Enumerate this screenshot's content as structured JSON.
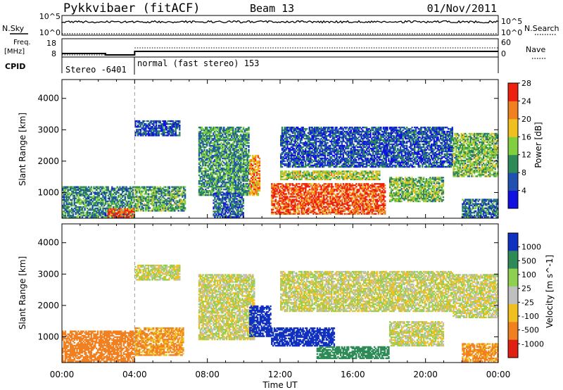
{
  "header": {
    "station": "Pykkvibaer (fitACF)",
    "beam": "Beam 13",
    "date": "01/Nov/2011"
  },
  "status_panels": {
    "nsky_label": "N.Sky",
    "nsearch_label": "N.Search",
    "freq_label_line1": "Freq.",
    "freq_label_line2": "[MHz]",
    "nave_label": "Nave",
    "cpid_label": "CPID",
    "noise_ticks_left": [
      "10^5",
      "10^0"
    ],
    "noise_ticks_right": [
      "10^5",
      "10^0"
    ],
    "freq_ticks": [
      "18",
      "8"
    ],
    "nave_ticks": [
      "60",
      "0"
    ],
    "cpid_modes": [
      {
        "label": "Stereo -6401",
        "start_hour": 0,
        "end_hour": 4
      },
      {
        "label": "normal (fast stereo) 153",
        "start_hour": 4,
        "end_hour": 24
      }
    ]
  },
  "axes": {
    "xlabel": "Time UT",
    "ylabel": "Slant Range [km]",
    "xticks": [
      "00:00",
      "04:00",
      "08:00",
      "12:00",
      "16:00",
      "20:00",
      "00:00"
    ],
    "yticks": [
      "1000",
      "2000",
      "3000",
      "4000"
    ]
  },
  "colorbars": {
    "power": {
      "label": "Power [dB]",
      "ticks": [
        "4",
        "8",
        "12",
        "16",
        "20",
        "24",
        "28"
      ],
      "colors": [
        "#1010e0",
        "#2050b0",
        "#2e8b57",
        "#7fcf3f",
        "#f0c020",
        "#f08020",
        "#ee2010"
      ]
    },
    "velocity": {
      "label": "Velocity [m s^-1]",
      "ticks": [
        "1000",
        "500",
        "100",
        "25",
        "-25",
        "-100",
        "-500",
        "-1000"
      ],
      "colors": [
        "#1030c0",
        "#2e8b57",
        "#8fd050",
        "#c0c0c0",
        "#f0c020",
        "#f08020",
        "#e02010"
      ]
    }
  },
  "chart_data": [
    {
      "type": "heatmap",
      "title": "Power",
      "xlabel": "Time UT",
      "ylabel": "Slant Range [km]",
      "x_range_hours": [
        0,
        24
      ],
      "y_range_km": [
        180,
        4600
      ],
      "colorbar_range_db": [
        0,
        30
      ],
      "regions": [
        {
          "t0": 0,
          "t1": 4,
          "r0": 200,
          "r1": 1200,
          "level_db": 10
        },
        {
          "t0": 2.5,
          "t1": 4,
          "r0": 200,
          "r1": 500,
          "level_db": 26
        },
        {
          "t0": 4,
          "t1": 6.8,
          "r0": 400,
          "r1": 1200,
          "level_db": 12
        },
        {
          "t0": 4,
          "t1": 6.5,
          "r0": 2800,
          "r1": 3300,
          "level_db": 6
        },
        {
          "t0": 7.5,
          "t1": 10.3,
          "r0": 900,
          "r1": 3100,
          "level_db": 11
        },
        {
          "t0": 8.3,
          "t1": 10,
          "r0": 200,
          "r1": 1000,
          "level_db": 7
        },
        {
          "t0": 10.3,
          "t1": 10.9,
          "r0": 900,
          "r1": 2200,
          "level_db": 22
        },
        {
          "t0": 11.5,
          "t1": 17.8,
          "r0": 300,
          "r1": 1300,
          "level_db": 26
        },
        {
          "t0": 12,
          "t1": 17.5,
          "r0": 1400,
          "r1": 1700,
          "level_db": 16
        },
        {
          "t0": 12,
          "t1": 21.5,
          "r0": 1800,
          "r1": 3100,
          "level_db": 6
        },
        {
          "t0": 18,
          "t1": 21,
          "r0": 700,
          "r1": 1500,
          "level_db": 14
        },
        {
          "t0": 21.5,
          "t1": 24,
          "r0": 1500,
          "r1": 2900,
          "level_db": 14
        },
        {
          "t0": 22,
          "t1": 24,
          "r0": 200,
          "r1": 800,
          "level_db": 8
        }
      ]
    },
    {
      "type": "heatmap",
      "title": "Velocity",
      "xlabel": "Time UT",
      "ylabel": "Slant Range [km]",
      "x_range_hours": [
        0,
        24
      ],
      "y_range_km": [
        180,
        4600
      ],
      "colorbar_range_ms": [
        -1000,
        1000
      ],
      "regions": [
        {
          "t0": 0,
          "t1": 4,
          "r0": 200,
          "r1": 1200,
          "level_ms": -200
        },
        {
          "t0": 4,
          "t1": 6.7,
          "r0": 400,
          "r1": 1300,
          "level_ms": -120
        },
        {
          "t0": 4,
          "t1": 6.5,
          "r0": 2800,
          "r1": 3300,
          "level_ms": 0
        },
        {
          "t0": 7.5,
          "t1": 10.6,
          "r0": 900,
          "r1": 3000,
          "level_ms": 0
        },
        {
          "t0": 10.3,
          "t1": 11.5,
          "r0": 1000,
          "r1": 2000,
          "level_ms": 600
        },
        {
          "t0": 11.5,
          "t1": 15,
          "r0": 700,
          "r1": 1300,
          "level_ms": 700
        },
        {
          "t0": 14,
          "t1": 18,
          "r0": 300,
          "r1": 700,
          "level_ms": 300
        },
        {
          "t0": 12,
          "t1": 21.5,
          "r0": 1800,
          "r1": 3100,
          "level_ms": 0
        },
        {
          "t0": 18,
          "t1": 21,
          "r0": 700,
          "r1": 1500,
          "level_ms": 0
        },
        {
          "t0": 21.5,
          "t1": 24,
          "r0": 1600,
          "r1": 3000,
          "level_ms": 0
        },
        {
          "t0": 22,
          "t1": 24,
          "r0": 200,
          "r1": 800,
          "level_ms": -150
        }
      ]
    }
  ]
}
